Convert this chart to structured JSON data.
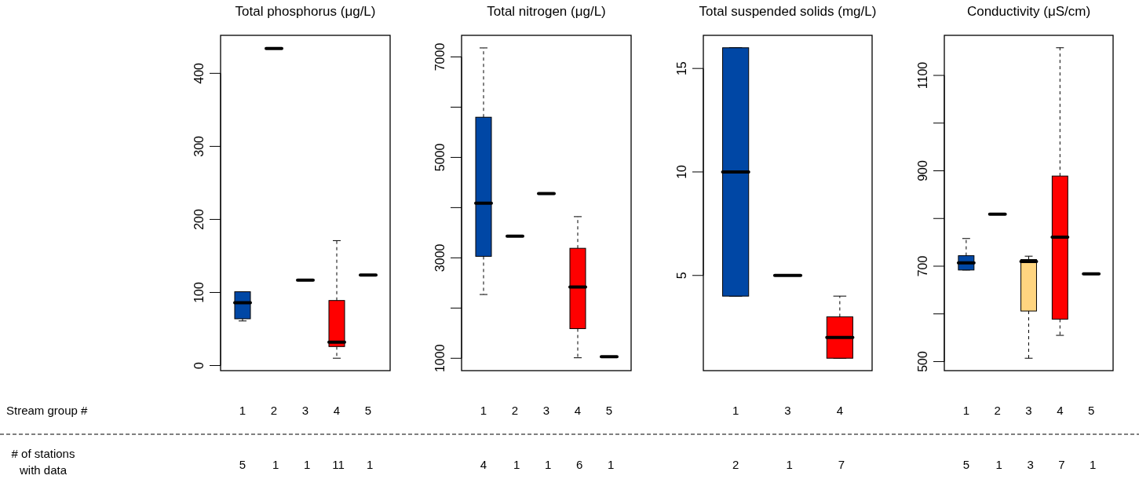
{
  "chart_data": [
    {
      "type": "box",
      "title": "Total phosphorus (μg/L)",
      "categories": [
        "1",
        "2",
        "3",
        "4",
        "5"
      ],
      "colors": [
        "#0047a5",
        null,
        null,
        "#ff0000",
        null
      ],
      "ylim": [
        -7,
        452
      ],
      "yticks": [
        0,
        100,
        200,
        300,
        400
      ],
      "boxes": [
        {
          "low": 61,
          "q1": 64,
          "median": 86,
          "q3": 101,
          "high": 101
        },
        {
          "low": 434,
          "q1": 434,
          "median": 434,
          "q3": 434,
          "high": 434
        },
        {
          "low": 117,
          "q1": 117,
          "median": 117,
          "q3": 117,
          "high": 117
        },
        {
          "low": 10,
          "q1": 26,
          "median": 32,
          "q3": 89,
          "high": 171
        },
        {
          "low": 124,
          "q1": 124,
          "median": 124,
          "q3": 124,
          "high": 124
        }
      ],
      "annotations": [
        "Stream group #",
        "# of stations with data",
        "5 1 1 11 1"
      ]
    },
    {
      "type": "box",
      "title": "Total nitrogen (μg/L)",
      "categories": [
        "1",
        "2",
        "3",
        "4",
        "5"
      ],
      "colors": [
        "#0047a5",
        null,
        null,
        "#ff0000",
        null
      ],
      "ylim": [
        754,
        7430
      ],
      "yticks": [
        1000,
        {
          "value": 2000,
          "label": null
        },
        3000,
        {
          "value": 4000,
          "label": null
        },
        5000,
        {
          "value": 6000,
          "label": null
        },
        7000
      ],
      "boxes": [
        {
          "low": 2270,
          "q1": 3030,
          "median": 4090,
          "q3": 5800,
          "high": 7180
        },
        {
          "low": 3430,
          "q1": 3430,
          "median": 3430,
          "q3": 3430,
          "high": 3430
        },
        {
          "low": 4280,
          "q1": 4280,
          "median": 4280,
          "q3": 4280,
          "high": 4280
        },
        {
          "low": 1010,
          "q1": 1590,
          "median": 2420,
          "q3": 3190,
          "high": 3820
        },
        {
          "low": 1030,
          "q1": 1030,
          "median": 1030,
          "q3": 1030,
          "high": 1030
        }
      ],
      "annotations": [
        "4 1 1 6 1"
      ]
    },
    {
      "type": "box",
      "title": "Total suspended solids (mg/L)",
      "categories": [
        "1",
        "3",
        "4"
      ],
      "colors": [
        "#0047a5",
        null,
        "#ff0000"
      ],
      "ylim": [
        0.4,
        16.6
      ],
      "yticks": [
        5,
        10,
        15
      ],
      "boxes": [
        {
          "low": 4,
          "q1": 4,
          "median": 10,
          "q3": 16,
          "high": 16
        },
        {
          "low": 5,
          "q1": 5,
          "median": 5,
          "q3": 5,
          "high": 5
        },
        {
          "low": 1,
          "q1": 1,
          "median": 2,
          "q3": 3,
          "high": 4
        }
      ],
      "annotations": [
        "2 1 7"
      ]
    },
    {
      "type": "box",
      "title": "Conductivity (μS/cm)",
      "categories": [
        "1",
        "2",
        "3",
        "4",
        "5"
      ],
      "colors": [
        "#0047a5",
        null,
        "#ffd580",
        "#ff0000",
        null
      ],
      "ylim": [
        481,
        1184
      ],
      "yticks": [
        500,
        {
          "value": 600,
          "label": null
        },
        700,
        {
          "value": 800,
          "label": null
        },
        900,
        {
          "value": 1000,
          "label": null
        },
        1100
      ],
      "boxes": [
        {
          "low": 692,
          "q1": 692,
          "median": 707,
          "q3": 722,
          "high": 758
        },
        {
          "low": 809,
          "q1": 809,
          "median": 809,
          "q3": 809,
          "high": 809
        },
        {
          "low": 507,
          "q1": 606,
          "median": 710,
          "q3": 714,
          "high": 721
        },
        {
          "low": 555,
          "q1": 589,
          "median": 761,
          "q3": 889,
          "high": 1158
        },
        {
          "low": 684,
          "q1": 684,
          "median": 684,
          "q3": 684,
          "high": 684
        }
      ],
      "annotations": [
        "5 1 3 7 1"
      ]
    }
  ]
}
